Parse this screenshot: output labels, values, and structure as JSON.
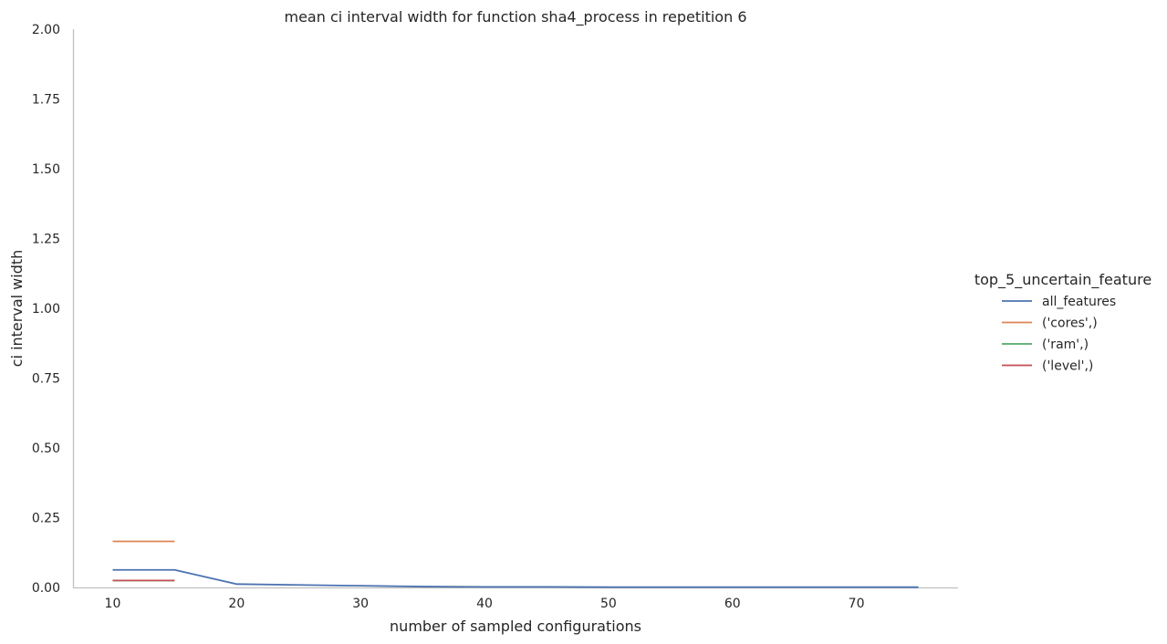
{
  "chart_data": {
    "type": "line",
    "title": "mean ci interval width for function sha4_process in repetition 6",
    "xlabel": "number of sampled configurations",
    "ylabel": "ci interval width",
    "xlim": [
      6.8,
      78.2
    ],
    "ylim": [
      0,
      2
    ],
    "xticks": [
      10,
      20,
      30,
      40,
      50,
      60,
      70
    ],
    "xtick_labels": [
      "10",
      "20",
      "30",
      "40",
      "50",
      "60",
      "70"
    ],
    "yticks": [
      0,
      0.25,
      0.5,
      0.75,
      1.0,
      1.25,
      1.5,
      1.75,
      2.0
    ],
    "ytick_labels": [
      "0.00",
      "0.25",
      "0.50",
      "0.75",
      "1.00",
      "1.25",
      "1.50",
      "1.75",
      "2.00"
    ],
    "grid": false,
    "legend": {
      "title": "top_5_uncertain_feature",
      "placement": "right"
    },
    "series": [
      {
        "name": "all_features",
        "color": "#4c72b0",
        "x": [
          10,
          15,
          20,
          25,
          30,
          35,
          40,
          45,
          50,
          55,
          60,
          65,
          70,
          75
        ],
        "y": [
          0.063,
          0.063,
          0.012,
          0.009,
          0.006,
          0.003,
          0.002,
          0.002,
          0.001,
          0.001,
          0.001,
          0.001,
          0.001,
          0.001
        ]
      },
      {
        "name": "('cores',)",
        "color": "#dd8452",
        "x": [
          10,
          15
        ],
        "y": [
          0.165,
          0.165
        ]
      },
      {
        "name": "('ram',)",
        "color": "#55a868",
        "x": [
          10,
          15
        ],
        "y": [
          0.025,
          0.025
        ]
      },
      {
        "name": "('level',)",
        "color": "#c44e52",
        "x": [
          10,
          15
        ],
        "y": [
          0.025,
          0.025
        ]
      }
    ]
  }
}
